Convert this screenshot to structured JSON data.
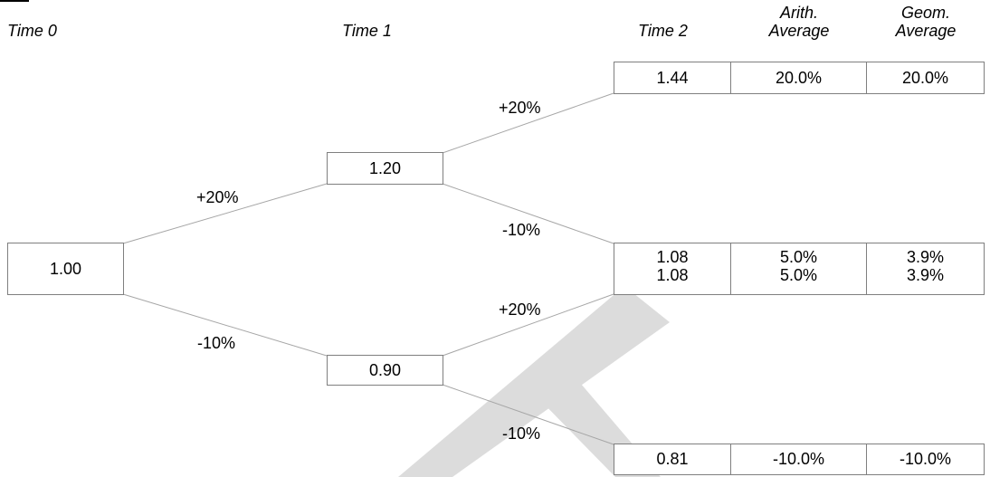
{
  "headers": {
    "time0": "Time 0",
    "time1": "Time 1",
    "time2": "Time 2",
    "arith_line1": "Arith.",
    "arith_line2": "Average",
    "geom_line1": "Geom.",
    "geom_line2": "Average"
  },
  "nodes": {
    "t0": "1.00",
    "t1_up": "1.20",
    "t1_down": "0.90"
  },
  "branch_labels": {
    "t0_up": "+20%",
    "t0_down": "-10%",
    "up_up": "+20%",
    "up_down": "-10%",
    "down_up": "+20%",
    "down_down": "-10%"
  },
  "outcomes": [
    {
      "value": "1.44",
      "arith": "20.0%",
      "geom": "20.0%"
    },
    {
      "value": "1.08",
      "arith": "5.0%",
      "geom": "3.9%"
    },
    {
      "value": "1.08",
      "arith": "5.0%",
      "geom": "3.9%"
    },
    {
      "value": "0.81",
      "arith": "-10.0%",
      "geom": "-10.0%"
    }
  ]
}
